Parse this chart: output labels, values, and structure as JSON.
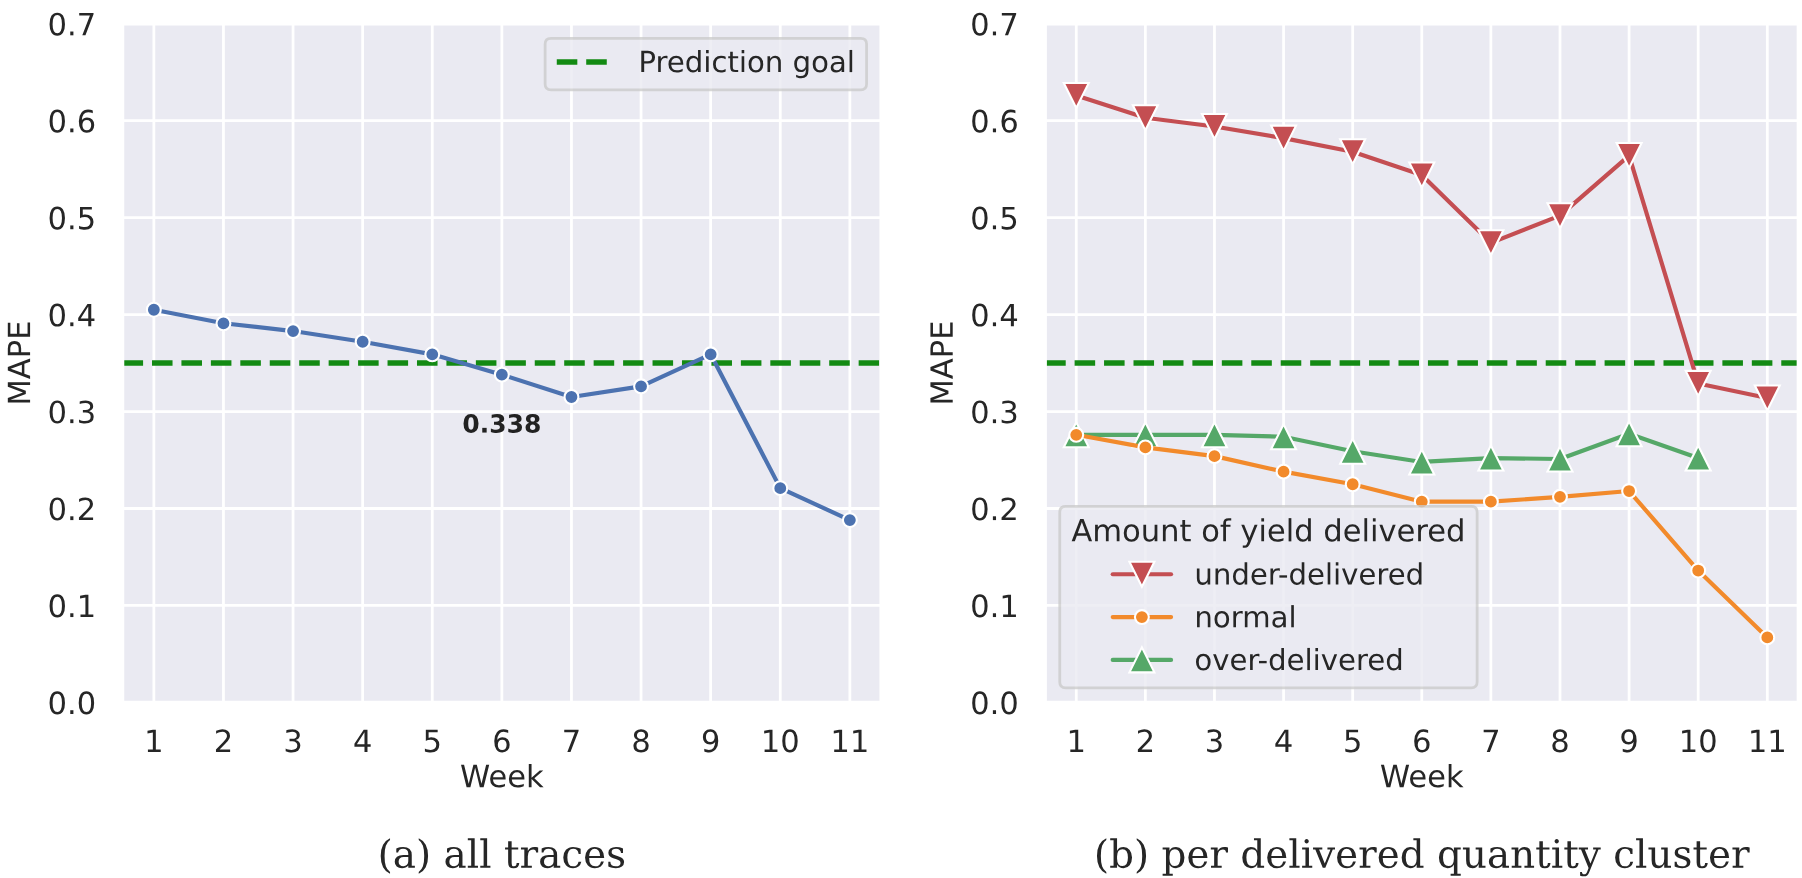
{
  "chart_data": [
    {
      "type": "line",
      "xlabel": "Week",
      "ylabel": "MAPE",
      "categories": [
        "1",
        "2",
        "3",
        "4",
        "5",
        "6",
        "7",
        "8",
        "9",
        "10",
        "11"
      ],
      "series": [
        {
          "color": "#4c72b0",
          "marker": "circle",
          "values": [
            0.405,
            0.391,
            0.383,
            0.372,
            0.359,
            0.338,
            0.315,
            0.326,
            0.359,
            0.221,
            0.188
          ],
          "value_labels": [
            null,
            null,
            null,
            null,
            null,
            "0.338",
            null,
            null,
            null,
            null,
            null
          ]
        }
      ],
      "ylim": [
        0,
        0.7
      ],
      "yticks": [
        {
          "value": 0,
          "label": "0.0"
        },
        0.1,
        0.2,
        0.3,
        0.4,
        0.5,
        0.6,
        0.7
      ],
      "grid": true,
      "legend": "top right",
      "ref_lines": [
        {
          "axis": "y",
          "value": 0.35,
          "label": "Prediction goal",
          "color": "#138a13",
          "line_style": "dashed"
        }
      ],
      "annotations": [
        "(a) all traces"
      ]
    },
    {
      "type": "line",
      "xlabel": "Week",
      "ylabel": "MAPE",
      "categories": [
        "1",
        "2",
        "3",
        "4",
        "5",
        "6",
        "7",
        "8",
        "9",
        "10",
        "11"
      ],
      "legend_title": "Amount of yield delivered",
      "series": [
        {
          "name": "under-delivered",
          "color": "#c44e52",
          "marker": "triangle_down",
          "values": [
            0.626,
            0.603,
            0.594,
            0.582,
            0.568,
            0.544,
            0.474,
            0.502,
            0.564,
            0.329,
            0.314
          ]
        },
        {
          "name": "normal",
          "color": "#f28a2b",
          "marker": "circle",
          "values": [
            0.276,
            0.263,
            0.254,
            0.238,
            0.225,
            0.207,
            0.207,
            0.212,
            0.218,
            0.136,
            0.067
          ]
        },
        {
          "name": "over-delivered",
          "color": "#55a868",
          "marker": "triangle",
          "values": [
            0.276,
            0.276,
            0.276,
            0.274,
            0.259,
            0.248,
            0.252,
            0.251,
            0.277,
            0.252,
            null
          ]
        }
      ],
      "ylim": [
        0,
        0.7
      ],
      "yticks": [
        {
          "value": 0,
          "label": "0.0"
        },
        0.1,
        0.2,
        0.3,
        0.4,
        0.5,
        0.6,
        0.7
      ],
      "grid": true,
      "legend": "bottom left",
      "ref_lines": [
        {
          "axis": "y",
          "value": 0.35,
          "color": "#138a13",
          "line_style": "dashed"
        }
      ],
      "annotations": [
        "(b) per delivered quantity cluster"
      ]
    }
  ]
}
